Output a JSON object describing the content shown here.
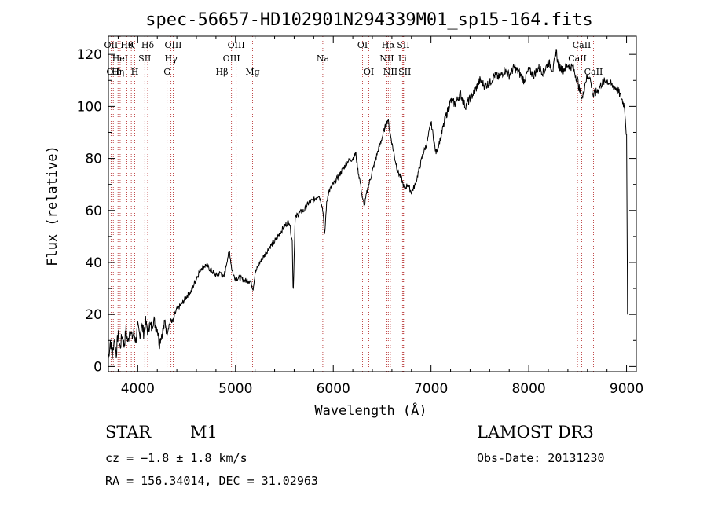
{
  "chart_data": {
    "type": "line",
    "title": "spec-56657-HD102901N294339M01_sp15-164.fits",
    "xlabel": "Wavelength (Å)",
    "ylabel": "Flux (relative)",
    "xlim": [
      3700,
      9100
    ],
    "ylim": [
      -2,
      127
    ],
    "xticks": [
      4000,
      5000,
      6000,
      7000,
      8000,
      9000
    ],
    "yticks": [
      0,
      20,
      40,
      60,
      80,
      100,
      120
    ],
    "line_color": "#000000",
    "marker_color": "#b22222",
    "spectrum": [
      [
        3700,
        3
      ],
      [
        3720,
        10
      ],
      [
        3740,
        4
      ],
      [
        3760,
        11
      ],
      [
        3780,
        5
      ],
      [
        3800,
        13
      ],
      [
        3820,
        7
      ],
      [
        3840,
        12
      ],
      [
        3860,
        8
      ],
      [
        3880,
        14
      ],
      [
        3900,
        9
      ],
      [
        3920,
        15
      ],
      [
        3940,
        11
      ],
      [
        3960,
        13
      ],
      [
        3980,
        10
      ],
      [
        4000,
        15
      ],
      [
        4020,
        12
      ],
      [
        4040,
        16
      ],
      [
        4060,
        13
      ],
      [
        4080,
        17
      ],
      [
        4100,
        14
      ],
      [
        4120,
        16
      ],
      [
        4140,
        15
      ],
      [
        4160,
        18
      ],
      [
        4180,
        16
      ],
      [
        4200,
        15
      ],
      [
        4220,
        9
      ],
      [
        4240,
        12
      ],
      [
        4260,
        14
      ],
      [
        4280,
        17
      ],
      [
        4300,
        13
      ],
      [
        4320,
        16
      ],
      [
        4340,
        18
      ],
      [
        4360,
        17
      ],
      [
        4380,
        20
      ],
      [
        4400,
        22
      ],
      [
        4450,
        24
      ],
      [
        4500,
        27
      ],
      [
        4550,
        29
      ],
      [
        4600,
        34
      ],
      [
        4650,
        38
      ],
      [
        4700,
        39
      ],
      [
        4750,
        37
      ],
      [
        4800,
        35
      ],
      [
        4850,
        36
      ],
      [
        4880,
        34
      ],
      [
        4900,
        38
      ],
      [
        4920,
        42
      ],
      [
        4940,
        44
      ],
      [
        4960,
        38
      ],
      [
        4980,
        35
      ],
      [
        5000,
        34
      ],
      [
        5050,
        34
      ],
      [
        5100,
        33
      ],
      [
        5150,
        33
      ],
      [
        5180,
        30
      ],
      [
        5200,
        36
      ],
      [
        5250,
        40
      ],
      [
        5300,
        43
      ],
      [
        5350,
        46
      ],
      [
        5400,
        48
      ],
      [
        5450,
        51
      ],
      [
        5500,
        54
      ],
      [
        5550,
        56
      ],
      [
        5580,
        48
      ],
      [
        5590,
        27
      ],
      [
        5610,
        57
      ],
      [
        5650,
        59
      ],
      [
        5700,
        60
      ],
      [
        5750,
        63
      ],
      [
        5800,
        64
      ],
      [
        5850,
        66
      ],
      [
        5880,
        63
      ],
      [
        5900,
        58
      ],
      [
        5910,
        49
      ],
      [
        5930,
        62
      ],
      [
        5950,
        67
      ],
      [
        6000,
        70
      ],
      [
        6050,
        73
      ],
      [
        6100,
        76
      ],
      [
        6150,
        79
      ],
      [
        6200,
        80
      ],
      [
        6230,
        82
      ],
      [
        6250,
        76
      ],
      [
        6280,
        70
      ],
      [
        6300,
        64
      ],
      [
        6320,
        62
      ],
      [
        6350,
        68
      ],
      [
        6400,
        75
      ],
      [
        6450,
        82
      ],
      [
        6500,
        88
      ],
      [
        6530,
        92
      ],
      [
        6560,
        95
      ],
      [
        6580,
        90
      ],
      [
        6600,
        86
      ],
      [
        6630,
        80
      ],
      [
        6660,
        75
      ],
      [
        6700,
        72
      ],
      [
        6730,
        68
      ],
      [
        6760,
        70
      ],
      [
        6800,
        67
      ],
      [
        6840,
        70
      ],
      [
        6880,
        76
      ],
      [
        6920,
        82
      ],
      [
        6960,
        86
      ],
      [
        7000,
        94
      ],
      [
        7050,
        82
      ],
      [
        7100,
        88
      ],
      [
        7150,
        96
      ],
      [
        7200,
        102
      ],
      [
        7250,
        101
      ],
      [
        7300,
        105
      ],
      [
        7350,
        100
      ],
      [
        7400,
        103
      ],
      [
        7450,
        106
      ],
      [
        7500,
        110
      ],
      [
        7550,
        108
      ],
      [
        7600,
        109
      ],
      [
        7650,
        112
      ],
      [
        7700,
        111
      ],
      [
        7750,
        114
      ],
      [
        7800,
        112
      ],
      [
        7850,
        115
      ],
      [
        7900,
        113
      ],
      [
        7950,
        110
      ],
      [
        8000,
        114
      ],
      [
        8050,
        112
      ],
      [
        8100,
        115
      ],
      [
        8150,
        113
      ],
      [
        8200,
        117
      ],
      [
        8250,
        114
      ],
      [
        8280,
        122
      ],
      [
        8300,
        116
      ],
      [
        8350,
        114
      ],
      [
        8400,
        116
      ],
      [
        8450,
        115
      ],
      [
        8480,
        112
      ],
      [
        8500,
        110
      ],
      [
        8520,
        106
      ],
      [
        8550,
        103
      ],
      [
        8580,
        110
      ],
      [
        8620,
        112
      ],
      [
        8660,
        104
      ],
      [
        8700,
        106
      ],
      [
        8750,
        109
      ],
      [
        8800,
        110
      ],
      [
        8850,
        108
      ],
      [
        8900,
        107
      ],
      [
        8950,
        103
      ],
      [
        8980,
        100
      ],
      [
        9000,
        88
      ],
      [
        9010,
        20
      ]
    ],
    "line_markers": [
      {
        "w": 3727,
        "top": "OII",
        "mid": "",
        "bot": ""
      },
      {
        "w": 3750,
        "top": "",
        "mid": "",
        "bot": "OII"
      },
      {
        "w": 3798,
        "top": "",
        "mid": "",
        "bot": "Hη"
      },
      {
        "w": 3820,
        "top": "",
        "mid": "HeI",
        "bot": ""
      },
      {
        "w": 3889,
        "top": "Hθ",
        "mid": "",
        "bot": ""
      },
      {
        "w": 3934,
        "top": "K",
        "mid": "",
        "bot": ""
      },
      {
        "w": 3970,
        "top": "",
        "mid": "",
        "bot": "H"
      },
      {
        "w": 4072,
        "top": "",
        "mid": "SII",
        "bot": ""
      },
      {
        "w": 4102,
        "top": "Hδ",
        "mid": "",
        "bot": ""
      },
      {
        "w": 4300,
        "top": "",
        "mid": "",
        "bot": "G"
      },
      {
        "w": 4340,
        "top": "",
        "mid": "Hγ",
        "bot": ""
      },
      {
        "w": 4363,
        "top": "OIII",
        "mid": "",
        "bot": ""
      },
      {
        "w": 4861,
        "top": "",
        "mid": "",
        "bot": "Hβ"
      },
      {
        "w": 4959,
        "top": "",
        "mid": "OIII",
        "bot": ""
      },
      {
        "w": 5007,
        "top": "OIII",
        "mid": "",
        "bot": ""
      },
      {
        "w": 5175,
        "top": "",
        "mid": "",
        "bot": "Mg"
      },
      {
        "w": 5893,
        "top": "",
        "mid": "Na",
        "bot": ""
      },
      {
        "w": 6300,
        "top": "OI",
        "mid": "",
        "bot": ""
      },
      {
        "w": 6364,
        "top": "",
        "mid": "",
        "bot": "OI"
      },
      {
        "w": 6548,
        "top": "",
        "mid": "NII",
        "bot": ""
      },
      {
        "w": 6563,
        "top": "Hα",
        "mid": "",
        "bot": ""
      },
      {
        "w": 6584,
        "top": "",
        "mid": "",
        "bot": "NII"
      },
      {
        "w": 6708,
        "top": "",
        "mid": "Li",
        "bot": ""
      },
      {
        "w": 6717,
        "top": "SII",
        "mid": "",
        "bot": ""
      },
      {
        "w": 6731,
        "top": "",
        "mid": "",
        "bot": "SII"
      },
      {
        "w": 8498,
        "top": "",
        "mid": "CaII",
        "bot": ""
      },
      {
        "w": 8542,
        "top": "CaII",
        "mid": "",
        "bot": ""
      },
      {
        "w": 8662,
        "top": "",
        "mid": "",
        "bot": "CaII"
      }
    ]
  },
  "info": {
    "object_class": "STAR",
    "subclass": "M1",
    "survey": "LAMOST DR3",
    "cz": "cz = −1.8 ± 1.8 km/s",
    "obs_date": "Obs-Date: 20131230",
    "coords": "RA = 156.34014, DEC =  31.02963"
  }
}
